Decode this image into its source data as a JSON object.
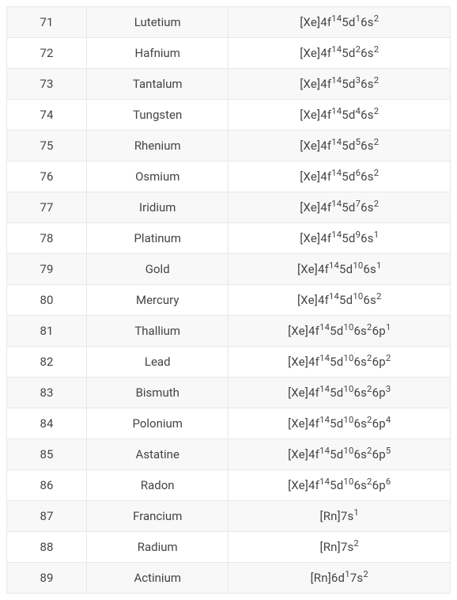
{
  "table": {
    "type": "table",
    "background_color_odd": "#f8f8f8",
    "background_color_even": "#ffffff",
    "border_color": "#e8e8e8",
    "text_color": "#444444",
    "font_size_pt": 12,
    "columns": [
      {
        "key": "atomic_number",
        "align": "center",
        "width_pct": 18
      },
      {
        "key": "element_name",
        "align": "center",
        "width_pct": 32
      },
      {
        "key": "electron_configuration",
        "align": "center",
        "width_pct": 50
      }
    ],
    "rows": [
      {
        "atomic_number": "71",
        "element_name": "Lutetium",
        "core": "[Xe]",
        "subshells": [
          [
            "4f",
            "14"
          ],
          [
            "5d",
            "1"
          ],
          [
            "6s",
            "2"
          ]
        ]
      },
      {
        "atomic_number": "72",
        "element_name": "Hafnium",
        "core": "[Xe]",
        "subshells": [
          [
            "4f",
            "14"
          ],
          [
            "5d",
            "2"
          ],
          [
            "6s",
            "2"
          ]
        ]
      },
      {
        "atomic_number": "73",
        "element_name": "Tantalum",
        "core": "[Xe]",
        "subshells": [
          [
            "4f",
            "14"
          ],
          [
            "5d",
            "3"
          ],
          [
            "6s",
            "2"
          ]
        ]
      },
      {
        "atomic_number": "74",
        "element_name": "Tungsten",
        "core": "[Xe]",
        "subshells": [
          [
            "4f",
            "14"
          ],
          [
            "5d",
            "4"
          ],
          [
            "6s",
            "2"
          ]
        ]
      },
      {
        "atomic_number": "75",
        "element_name": "Rhenium",
        "core": "[Xe]",
        "subshells": [
          [
            "4f",
            "14"
          ],
          [
            "5d",
            "5"
          ],
          [
            "6s",
            "2"
          ]
        ]
      },
      {
        "atomic_number": "76",
        "element_name": "Osmium",
        "core": "[Xe]",
        "subshells": [
          [
            "4f",
            "14"
          ],
          [
            "5d",
            "6"
          ],
          [
            "6s",
            "2"
          ]
        ]
      },
      {
        "atomic_number": "77",
        "element_name": "Iridium",
        "core": "[Xe]",
        "subshells": [
          [
            "4f",
            "14"
          ],
          [
            "5d",
            "7"
          ],
          [
            "6s",
            "2"
          ]
        ]
      },
      {
        "atomic_number": "78",
        "element_name": "Platinum",
        "core": "[Xe]",
        "subshells": [
          [
            "4f",
            "14"
          ],
          [
            "5d",
            "9"
          ],
          [
            "6s",
            "1"
          ]
        ]
      },
      {
        "atomic_number": "79",
        "element_name": "Gold",
        "core": "[Xe]",
        "subshells": [
          [
            "4f",
            "14"
          ],
          [
            "5d",
            "10"
          ],
          [
            "6s",
            "1"
          ]
        ]
      },
      {
        "atomic_number": "80",
        "element_name": "Mercury",
        "core": "[Xe]",
        "subshells": [
          [
            "4f",
            "14"
          ],
          [
            "5d",
            "10"
          ],
          [
            "6s",
            "2"
          ]
        ]
      },
      {
        "atomic_number": "81",
        "element_name": "Thallium",
        "core": "[Xe]",
        "subshells": [
          [
            "4f",
            "14"
          ],
          [
            "5d",
            "10"
          ],
          [
            "6s",
            "2"
          ],
          [
            "6p",
            "1"
          ]
        ]
      },
      {
        "atomic_number": "82",
        "element_name": "Lead",
        "core": "[Xe]",
        "subshells": [
          [
            "4f",
            "14"
          ],
          [
            "5d",
            "10"
          ],
          [
            "6s",
            "2"
          ],
          [
            "6p",
            "2"
          ]
        ]
      },
      {
        "atomic_number": "83",
        "element_name": "Bismuth",
        "core": "[Xe]",
        "subshells": [
          [
            "4f",
            "14"
          ],
          [
            "5d",
            "10"
          ],
          [
            "6s",
            "2"
          ],
          [
            "6p",
            "3"
          ]
        ]
      },
      {
        "atomic_number": "84",
        "element_name": "Polonium",
        "core": "[Xe]",
        "subshells": [
          [
            "4f",
            "14"
          ],
          [
            "5d",
            "10"
          ],
          [
            "6s",
            "2"
          ],
          [
            "6p",
            "4"
          ]
        ]
      },
      {
        "atomic_number": "85",
        "element_name": "Astatine",
        "core": "[Xe]",
        "subshells": [
          [
            "4f",
            "14"
          ],
          [
            "5d",
            "10"
          ],
          [
            "6s",
            "2"
          ],
          [
            "6p",
            "5"
          ]
        ]
      },
      {
        "atomic_number": "86",
        "element_name": "Radon",
        "core": "[Xe]",
        "subshells": [
          [
            "4f",
            "14"
          ],
          [
            "5d",
            "10"
          ],
          [
            "6s",
            "2"
          ],
          [
            "6p",
            "6"
          ]
        ]
      },
      {
        "atomic_number": "87",
        "element_name": "Francium",
        "core": "[Rn]",
        "subshells": [
          [
            "7s",
            "1"
          ]
        ]
      },
      {
        "atomic_number": "88",
        "element_name": "Radium",
        "core": "[Rn]",
        "subshells": [
          [
            "7s",
            "2"
          ]
        ]
      },
      {
        "atomic_number": "89",
        "element_name": "Actinium",
        "core": "[Rn]",
        "subshells": [
          [
            "6d",
            "1"
          ],
          [
            "7s",
            "2"
          ]
        ]
      }
    ]
  }
}
